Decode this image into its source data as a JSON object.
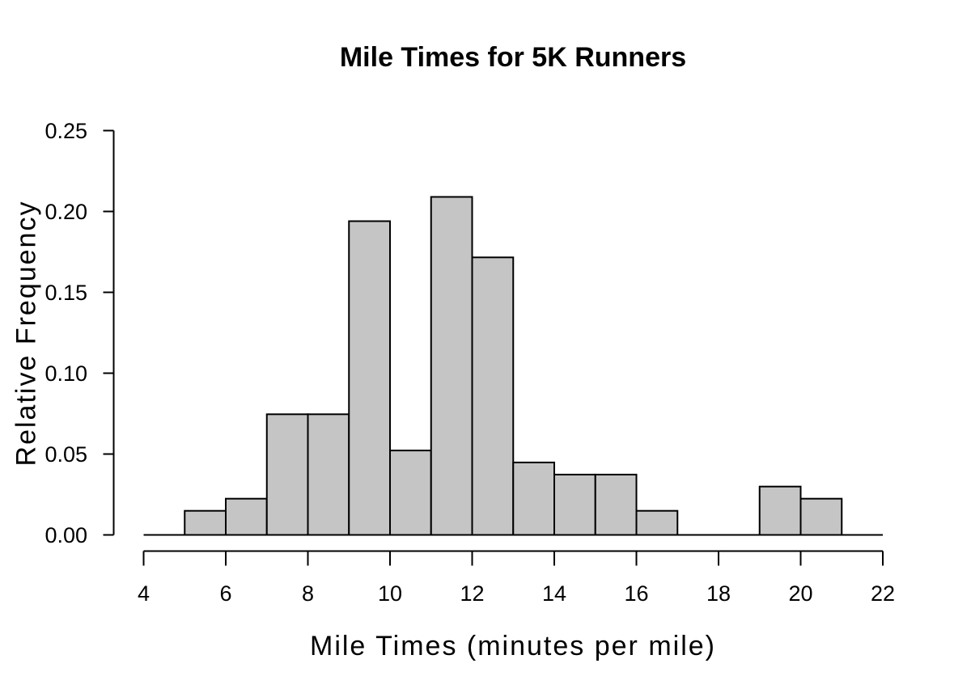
{
  "page": {
    "background": "#ffffff",
    "text_color": "#000000"
  },
  "chart_data": {
    "type": "bar",
    "subtype": "histogram",
    "title": "Mile Times for 5K Runners",
    "xlabel": "Mile Times (minutes per mile)",
    "ylabel": "Relative Frequency",
    "xlim": [
      4,
      22
    ],
    "ylim": [
      0,
      0.25
    ],
    "x_ticks": [
      "4",
      "6",
      "8",
      "10",
      "12",
      "14",
      "16",
      "18",
      "20",
      "22"
    ],
    "y_ticks": [
      "0.00",
      "0.05",
      "0.10",
      "0.15",
      "0.20",
      "0.25"
    ],
    "grid": false,
    "legend": false,
    "bar_fill": "#c5c5c5",
    "bar_stroke": "#000000",
    "axis_color": "#000000",
    "bin_width": 1,
    "bins": [
      {
        "start": 5,
        "end": 6,
        "rel_freq": 0.0149
      },
      {
        "start": 6,
        "end": 7,
        "rel_freq": 0.0224
      },
      {
        "start": 7,
        "end": 8,
        "rel_freq": 0.0746
      },
      {
        "start": 8,
        "end": 9,
        "rel_freq": 0.0746
      },
      {
        "start": 9,
        "end": 10,
        "rel_freq": 0.194
      },
      {
        "start": 10,
        "end": 11,
        "rel_freq": 0.0522
      },
      {
        "start": 11,
        "end": 12,
        "rel_freq": 0.209
      },
      {
        "start": 12,
        "end": 13,
        "rel_freq": 0.1716
      },
      {
        "start": 13,
        "end": 14,
        "rel_freq": 0.0448
      },
      {
        "start": 14,
        "end": 15,
        "rel_freq": 0.0373
      },
      {
        "start": 15,
        "end": 16,
        "rel_freq": 0.0373
      },
      {
        "start": 16,
        "end": 17,
        "rel_freq": 0.0149
      },
      {
        "start": 17,
        "end": 18,
        "rel_freq": 0
      },
      {
        "start": 18,
        "end": 19,
        "rel_freq": 0
      },
      {
        "start": 19,
        "end": 20,
        "rel_freq": 0.0299
      },
      {
        "start": 20,
        "end": 21,
        "rel_freq": 0.0224
      }
    ]
  }
}
